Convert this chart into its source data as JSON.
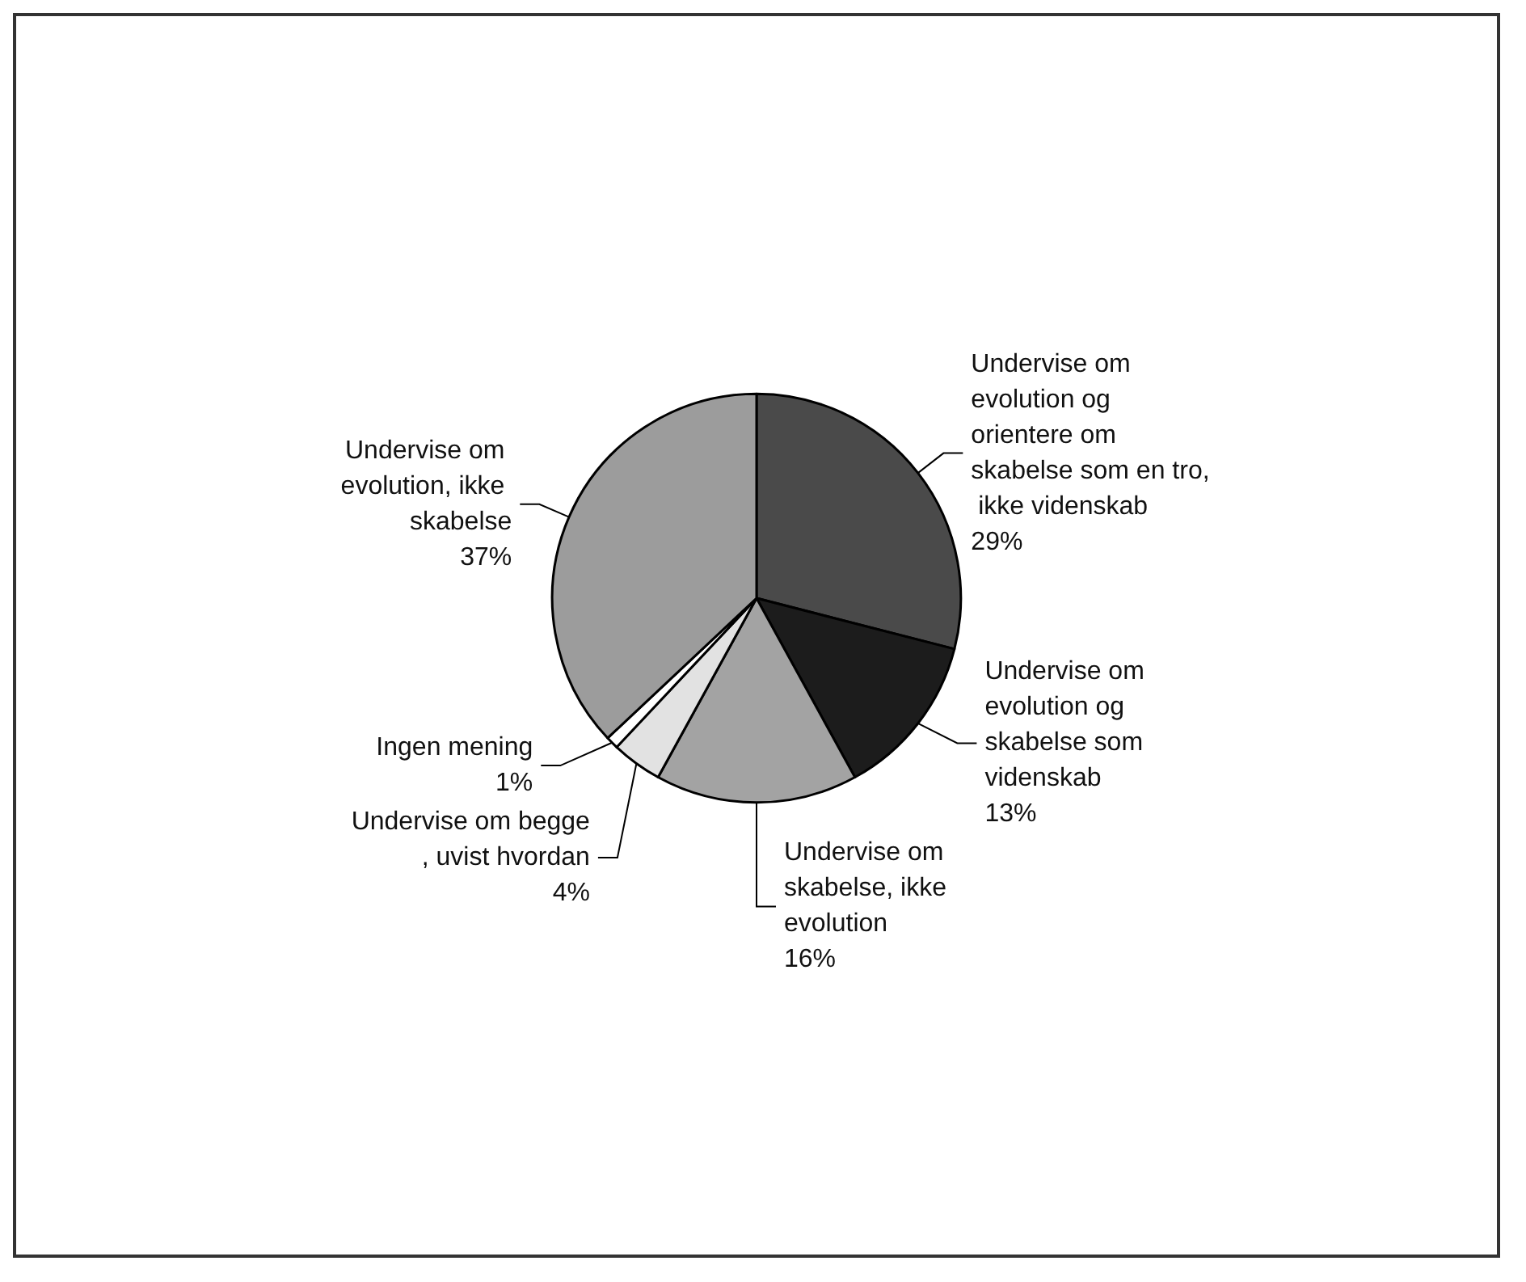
{
  "chart_data": {
    "type": "pie",
    "categories": [
      "Undervise om evolution og orientere om skabelse som en tro, ikke videnskab",
      "Undervise om evolution og skabelse som videnskab",
      "Undervise om skabelse, ikke evolution",
      "Undervise om begge, uvist hvordan",
      "Ingen mening",
      "Undervise om evolution, ikke skabelse"
    ],
    "values": [
      29,
      13,
      16,
      4,
      1,
      37
    ],
    "value_labels": [
      "29%",
      "13%",
      "16%",
      "4%",
      "1%",
      "37%"
    ],
    "colors": [
      "#4a4a4a",
      "#1c1c1c",
      "#a3a3a3",
      "#e2e2e2",
      "#ffffff",
      "#9c9c9c"
    ],
    "legend": false
  }
}
